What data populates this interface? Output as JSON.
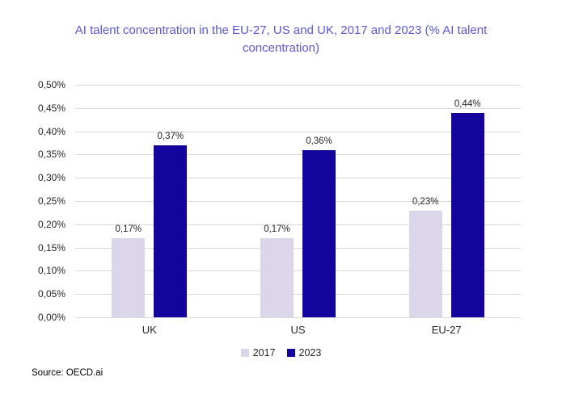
{
  "chart_data": {
    "type": "bar",
    "title": "AI talent concentration in the EU-27, US and UK, 2017 and 2023 (% AI talent concentration)",
    "categories": [
      "UK",
      "US",
      "EU-27"
    ],
    "series": [
      {
        "name": "2017",
        "color": "#DBD6E9",
        "values": [
          0.17,
          0.17,
          0.23
        ],
        "value_labels": [
          "0,17%",
          "0,17%",
          "0,23%"
        ]
      },
      {
        "name": "2023",
        "color": "#14049E",
        "values": [
          0.37,
          0.36,
          0.44
        ],
        "value_labels": [
          "0,37%",
          "0,36%",
          "0,44%"
        ]
      }
    ],
    "y_axis": {
      "min": 0,
      "max": 0.5,
      "tick_values": [
        0,
        0.05,
        0.1,
        0.15,
        0.2,
        0.25,
        0.3,
        0.35,
        0.4,
        0.45,
        0.5
      ],
      "tick_labels": [
        "0,00%",
        "0,05%",
        "0,10%",
        "0,15%",
        "0,20%",
        "0,25%",
        "0,30%",
        "0,35%",
        "0,40%",
        "0,45%",
        "0,50%"
      ]
    },
    "legend": {
      "position": "bottom",
      "entries": [
        "2017",
        "2023"
      ]
    },
    "grid": true,
    "xlabel": "",
    "ylabel": ""
  },
  "source": {
    "label": "Source: OECD.ai"
  },
  "colors": {
    "title": "#5A58D9",
    "grid": "#D9D9D9",
    "text": "#262626",
    "background": "#FFFFFF",
    "series_2017": "#DBD6E9",
    "series_2023": "#14049E"
  }
}
